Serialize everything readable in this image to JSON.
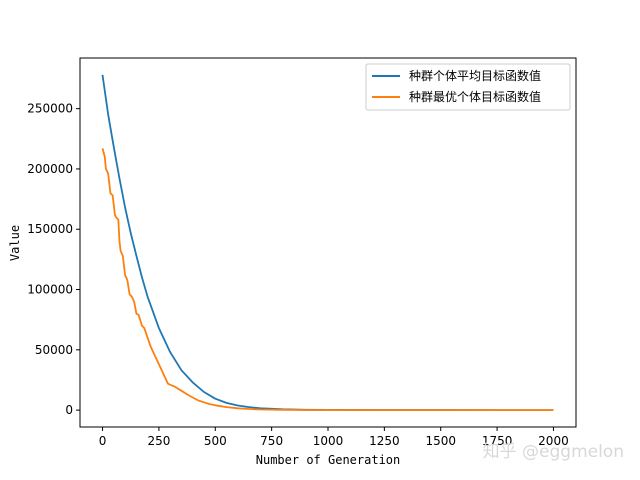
{
  "chart_data": {
    "type": "line",
    "title": "",
    "xlabel": "Number of Generation",
    "ylabel": "Value",
    "xlim": [
      -100,
      2100
    ],
    "ylim": [
      -14000,
      292000
    ],
    "x_ticks": [
      0,
      250,
      500,
      750,
      1000,
      1250,
      1500,
      1750,
      2000
    ],
    "y_ticks": [
      0,
      50000,
      100000,
      150000,
      200000,
      250000
    ],
    "grid": false,
    "legend_position": "top-right",
    "series": [
      {
        "name": "种群个体平均目标函数值",
        "color": "#1f77b4",
        "x": [
          0,
          25,
          50,
          75,
          100,
          125,
          150,
          175,
          200,
          250,
          300,
          350,
          400,
          450,
          500,
          550,
          600,
          650,
          700,
          800,
          900,
          1000,
          1250,
          1500,
          1750,
          2000
        ],
        "y": [
          278000,
          245000,
          218000,
          192000,
          168000,
          147000,
          128000,
          110000,
          94000,
          68000,
          48000,
          33000,
          23000,
          15000,
          9500,
          6000,
          3800,
          2500,
          1500,
          700,
          300,
          150,
          80,
          60,
          50,
          50
        ]
      },
      {
        "name": "种群最优个体目标函数值",
        "color": "#ff7f0e",
        "x": [
          0,
          10,
          15,
          25,
          35,
          45,
          55,
          60,
          70,
          75,
          80,
          90,
          100,
          110,
          120,
          130,
          140,
          150,
          160,
          175,
          185,
          200,
          215,
          230,
          250,
          265,
          275,
          290,
          300,
          320,
          350,
          375,
          400,
          425,
          450,
          475,
          500,
          550,
          600,
          650,
          700,
          800,
          900,
          1000,
          1250,
          1500,
          1750,
          2000
        ],
        "y": [
          217000,
          210000,
          200000,
          196000,
          180000,
          178000,
          162000,
          160000,
          158000,
          140000,
          132000,
          128000,
          112000,
          108000,
          96000,
          94000,
          90000,
          80000,
          79000,
          70000,
          68000,
          60000,
          52000,
          46000,
          38000,
          32000,
          28000,
          22000,
          21000,
          19500,
          16000,
          13000,
          10500,
          8000,
          6500,
          5000,
          4000,
          2500,
          1500,
          900,
          500,
          250,
          120,
          60,
          30,
          20,
          15,
          10
        ]
      }
    ]
  },
  "watermark": "知乎 @eggmelon"
}
